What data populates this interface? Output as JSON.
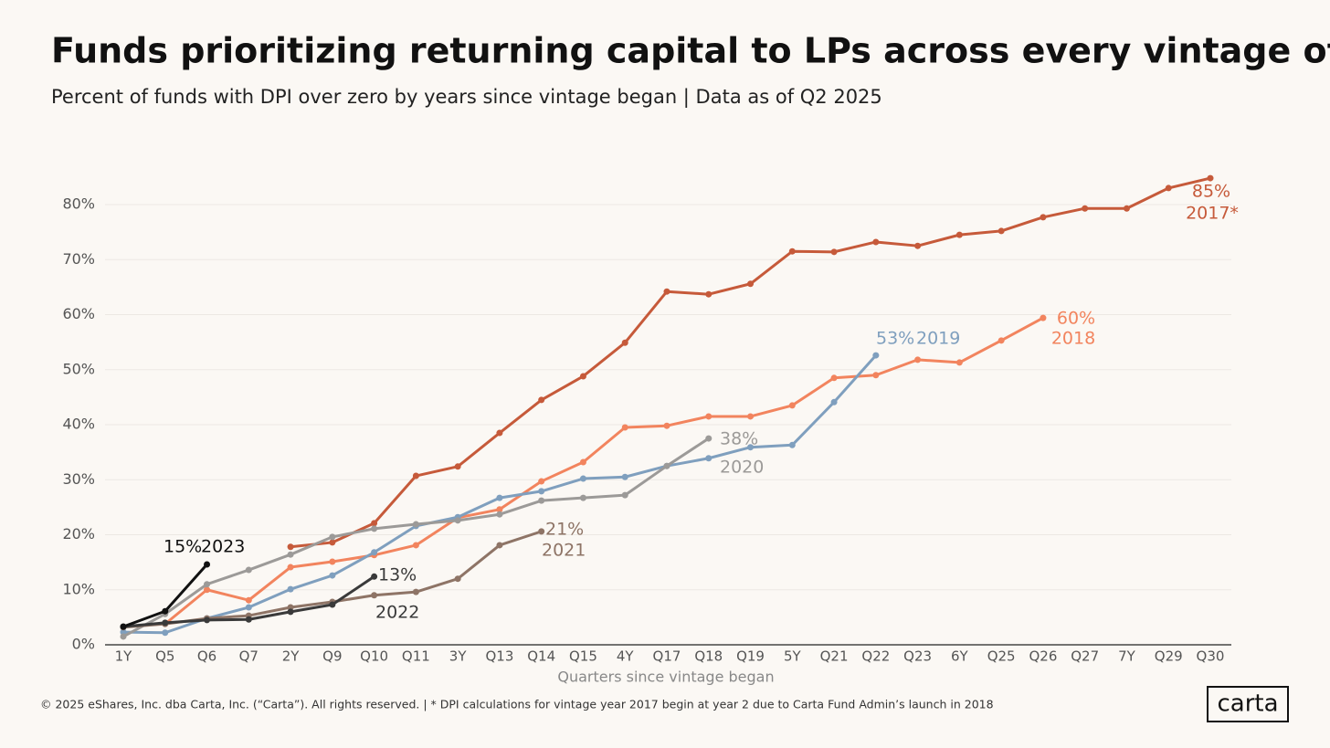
{
  "chart_data": {
    "type": "line",
    "title": "Funds prioritizing returning capital to LPs across every vintage of late",
    "subtitle": "Percent of funds with DPI over zero by years since vintage began | Data as of Q2 2025",
    "x_label": "Quarters since vintage began",
    "footnote": "© 2025 eShares, Inc. dba Carta, Inc. (“Carta”). All rights reserved.  |  * DPI calculations for vintage year 2017 begin at year 2 due to Carta Fund Admin’s launch in 2018",
    "logo": "carta",
    "categories": [
      "1Y",
      "Q5",
      "Q6",
      "Q7",
      "2Y",
      "Q9",
      "Q10",
      "Q11",
      "3Y",
      "Q13",
      "Q14",
      "Q15",
      "4Y",
      "Q17",
      "Q18",
      "Q19",
      "5Y",
      "Q21",
      "Q22",
      "Q23",
      "6Y",
      "Q25",
      "Q26",
      "Q27",
      "7Y",
      "Q29",
      "Q30"
    ],
    "ylim": [
      0,
      80
    ],
    "yticks": [
      {
        "value": 0,
        "label": "0%"
      },
      {
        "value": 10,
        "label": "10%"
      },
      {
        "value": 20,
        "label": "20%"
      },
      {
        "value": 30,
        "label": "30%"
      },
      {
        "value": 40,
        "label": "40%"
      },
      {
        "value": 50,
        "label": "50%"
      },
      {
        "value": 60,
        "label": "60%"
      },
      {
        "value": 70,
        "label": "70%"
      },
      {
        "value": 80,
        "label": "80%"
      }
    ],
    "grid": true,
    "series": [
      {
        "name": "2017*",
        "end_label": "85%",
        "color": "#c65a3a",
        "values": [
          null,
          null,
          null,
          null,
          17.8,
          18.6,
          22.1,
          30.7,
          32.4,
          38.5,
          44.5,
          48.8,
          54.9,
          64.2,
          63.7,
          65.6,
          71.5,
          71.4,
          73.2,
          72.5,
          74.5,
          75.2,
          77.7,
          79.3,
          79.3,
          83,
          84.8
        ]
      },
      {
        "name": "2018",
        "end_label": "60%",
        "color": "#f2845e",
        "values": [
          null,
          3.8,
          10,
          8.1,
          14.1,
          15.1,
          16.3,
          18.1,
          23.1,
          24.6,
          29.7,
          33.2,
          39.5,
          39.8,
          41.5,
          41.5,
          43.5,
          48.5,
          49,
          51.8,
          51.3,
          55.3,
          59.4,
          null,
          null,
          null,
          null
        ]
      },
      {
        "name": "2019",
        "end_label": "53%",
        "color": "#7f9fbe",
        "values": [
          2.3,
          2.2,
          4.8,
          6.8,
          10.1,
          12.6,
          16.8,
          21.6,
          23.2,
          26.7,
          27.9,
          30.2,
          30.5,
          32.5,
          33.9,
          35.9,
          36.3,
          44.1,
          52.6,
          null,
          null,
          null,
          null,
          null,
          null,
          null,
          null
        ]
      },
      {
        "name": "2020",
        "end_label": "38%",
        "color": "#9c9a98",
        "values": [
          1.5,
          5.6,
          11,
          13.6,
          16.4,
          19.6,
          21.1,
          21.9,
          22.6,
          23.7,
          26.2,
          26.7,
          27.2,
          32.5,
          37.5,
          null,
          null,
          null,
          null,
          null,
          null,
          null,
          null,
          null,
          null,
          null,
          null
        ]
      },
      {
        "name": "2021",
        "end_label": "21%",
        "color": "#8e7466",
        "values": [
          3.2,
          3.8,
          4.8,
          5.3,
          6.8,
          7.8,
          9,
          9.6,
          12,
          18.1,
          20.6,
          null,
          null,
          null,
          null,
          null,
          null,
          null,
          null,
          null,
          null,
          null,
          null,
          null,
          null,
          null,
          null
        ]
      },
      {
        "name": "2022",
        "end_label": "13%",
        "color": "#3a3a3a",
        "values": [
          3.3,
          4,
          4.5,
          4.6,
          6,
          7.3,
          12.4,
          null,
          null,
          null,
          null,
          null,
          null,
          null,
          null,
          null,
          null,
          null,
          null,
          null,
          null,
          null,
          null,
          null,
          null,
          null,
          null
        ]
      },
      {
        "name": "2023",
        "end_label": "15%",
        "color": "#111111",
        "values": [
          3.3,
          6.1,
          14.6,
          null,
          null,
          null,
          null,
          null,
          null,
          null,
          null,
          null,
          null,
          null,
          null,
          null,
          null,
          null,
          null,
          null,
          null,
          null,
          null,
          null,
          null,
          null,
          null
        ]
      }
    ]
  }
}
